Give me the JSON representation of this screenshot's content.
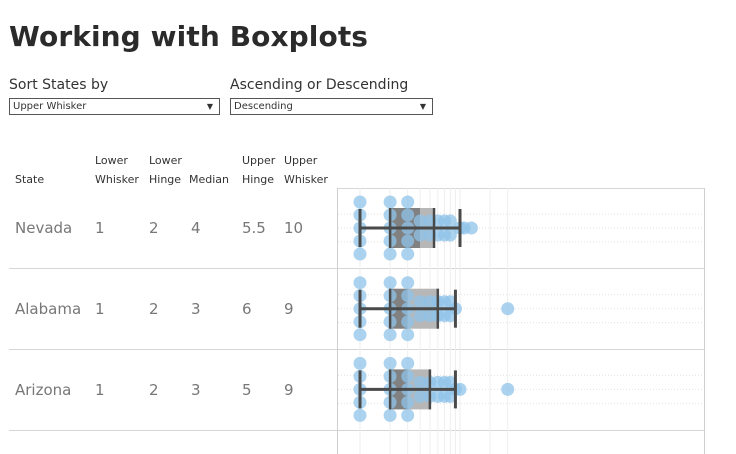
{
  "title": "Working with Boxplots",
  "controls": {
    "sort_label": "Sort States by",
    "sort_value": "Upper Whisker",
    "order_label": "Ascending or Descending",
    "order_value": "Descending"
  },
  "columns": {
    "state": "State",
    "lower_whisker": [
      "Lower",
      "Whisker"
    ],
    "lower_hinge": [
      "Lower",
      "Hinge"
    ],
    "median": "Median",
    "upper_hinge": [
      "Upper",
      "Hinge"
    ],
    "upper_whisker": [
      "Upper",
      "Whisker"
    ]
  },
  "colors": {
    "dot": "#8fc3e8",
    "box_lower": "#7a7a7a",
    "box_upper": "#b3b3b3",
    "whisker": "#4a4a4a",
    "text_value": "#777777"
  },
  "rows": [
    {
      "state": "Nevada",
      "lower_whisker": "1",
      "lower_hinge": "2",
      "median": "4",
      "upper_hinge": "5.5",
      "upper_whisker": "10"
    },
    {
      "state": "Alabama",
      "lower_whisker": "1",
      "lower_hinge": "2",
      "median": "3",
      "upper_hinge": "6",
      "upper_whisker": "9"
    },
    {
      "state": "Arizona",
      "lower_whisker": "1",
      "lower_hinge": "2",
      "median": "3",
      "upper_hinge": "5",
      "upper_whisker": "9"
    }
  ],
  "chart_data": {
    "type": "scatter",
    "x_scale": "log",
    "grid": true,
    "boxes": [
      {
        "state": "Nevada",
        "lower_whisker": 1,
        "lower_hinge": 2,
        "median": 4,
        "upper_hinge": 5.5,
        "upper_whisker": 10,
        "points": [
          1,
          2,
          3,
          4,
          5,
          6,
          7,
          8,
          10,
          11,
          13
        ]
      },
      {
        "state": "Alabama",
        "lower_whisker": 1,
        "lower_hinge": 2,
        "median": 3,
        "upper_hinge": 6,
        "upper_whisker": 9,
        "points": [
          1,
          2,
          3,
          4,
          5,
          6,
          7,
          8,
          9,
          30
        ]
      },
      {
        "state": "Arizona",
        "lower_whisker": 1,
        "lower_hinge": 2,
        "median": 3,
        "upper_hinge": 5,
        "upper_whisker": 9,
        "points": [
          1,
          2,
          3,
          4,
          5,
          6,
          7,
          8,
          9,
          10,
          30
        ]
      }
    ]
  }
}
